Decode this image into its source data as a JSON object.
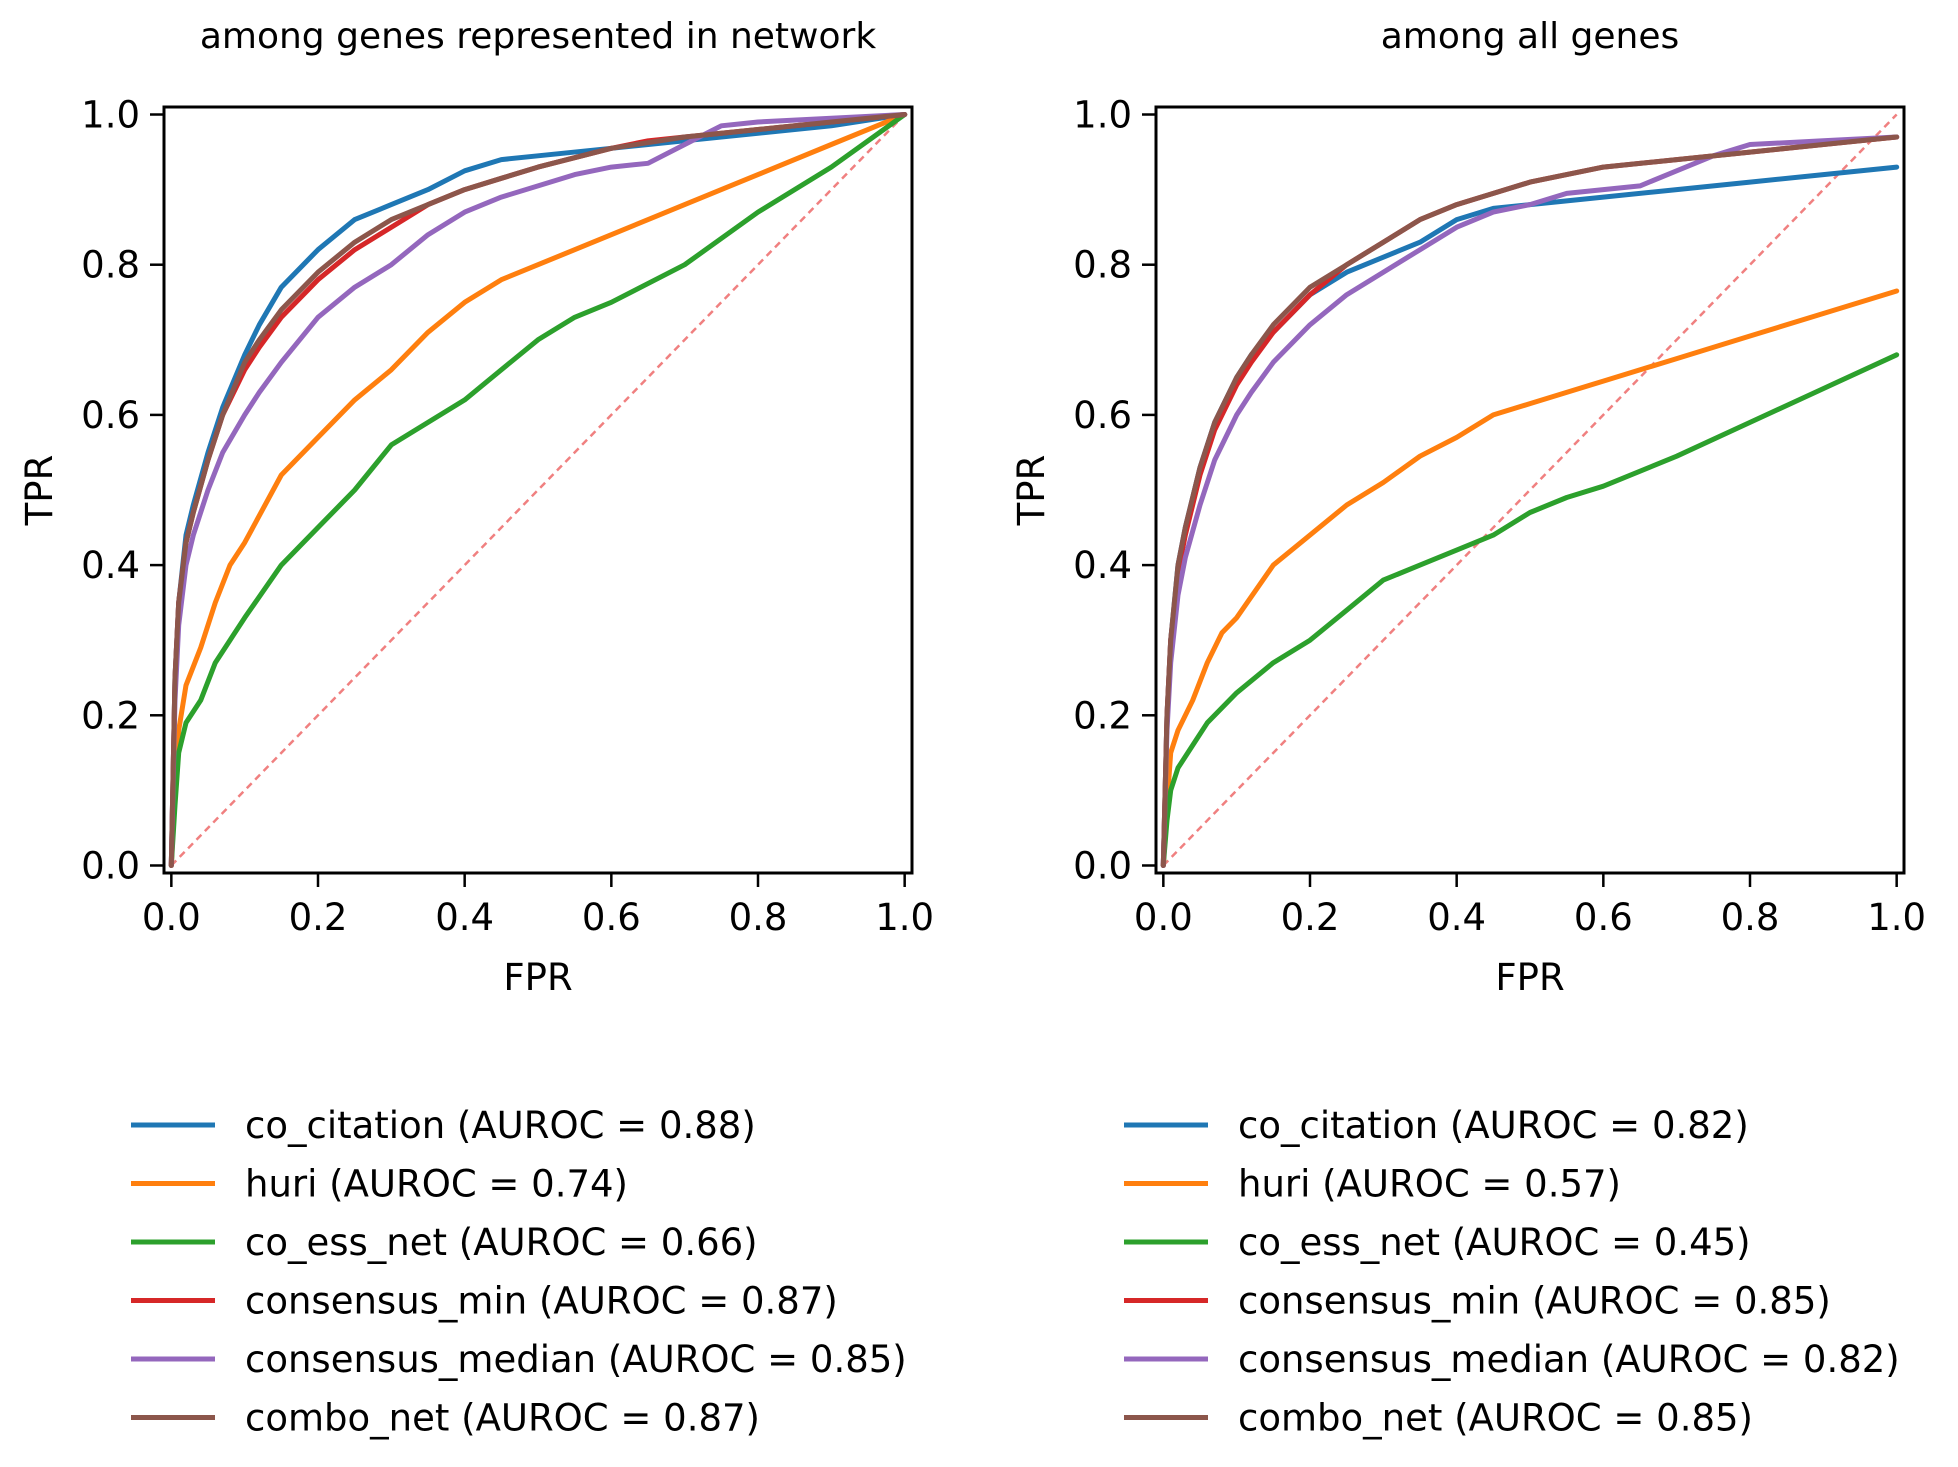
{
  "chart_data": [
    {
      "type": "line",
      "title": "among genes represented in network",
      "xlabel": "FPR",
      "ylabel": "TPR",
      "xlim": [
        -0.01,
        1.01
      ],
      "ylim": [
        -0.01,
        1.01
      ],
      "xticks": [
        "0.0",
        "0.2",
        "0.4",
        "0.6",
        "0.8",
        "1.0"
      ],
      "yticks": [
        "0.0",
        "0.2",
        "0.4",
        "0.6",
        "0.8",
        "1.0"
      ],
      "grid": false,
      "legend_position": "below",
      "reference_line": {
        "style": "dashed",
        "color": "#f08080",
        "x": [
          0,
          1
        ],
        "y": [
          0,
          1
        ]
      },
      "series": [
        {
          "name": "co_citation (AUROC = 0.88)",
          "color": "#1f77b4",
          "x": [
            0,
            0.005,
            0.01,
            0.02,
            0.03,
            0.05,
            0.07,
            0.1,
            0.12,
            0.15,
            0.2,
            0.25,
            0.3,
            0.35,
            0.4,
            0.45,
            0.5,
            0.6,
            0.7,
            0.8,
            0.9,
            1.0
          ],
          "y": [
            0,
            0.25,
            0.35,
            0.44,
            0.48,
            0.55,
            0.61,
            0.68,
            0.72,
            0.77,
            0.82,
            0.86,
            0.88,
            0.9,
            0.925,
            0.94,
            0.945,
            0.955,
            0.965,
            0.975,
            0.985,
            1.0
          ]
        },
        {
          "name": "huri (AUROC = 0.74)",
          "color": "#ff7f0e",
          "x": [
            0,
            0.005,
            0.01,
            0.02,
            0.04,
            0.06,
            0.08,
            0.1,
            0.15,
            0.2,
            0.25,
            0.3,
            0.35,
            0.4,
            0.45,
            0.5,
            0.6,
            0.7,
            0.8,
            0.9,
            1.0
          ],
          "y": [
            0,
            0.1,
            0.18,
            0.24,
            0.29,
            0.35,
            0.4,
            0.43,
            0.52,
            0.57,
            0.62,
            0.66,
            0.71,
            0.75,
            0.78,
            0.8,
            0.84,
            0.88,
            0.92,
            0.96,
            1.0
          ]
        },
        {
          "name": "co_ess_net (AUROC = 0.66)",
          "color": "#2ca02c",
          "x": [
            0,
            0.005,
            0.01,
            0.02,
            0.04,
            0.06,
            0.08,
            0.1,
            0.15,
            0.2,
            0.25,
            0.3,
            0.35,
            0.4,
            0.45,
            0.5,
            0.55,
            0.6,
            0.7,
            0.8,
            0.9,
            1.0
          ],
          "y": [
            0,
            0.08,
            0.15,
            0.19,
            0.22,
            0.27,
            0.3,
            0.33,
            0.4,
            0.45,
            0.5,
            0.56,
            0.59,
            0.62,
            0.66,
            0.7,
            0.73,
            0.75,
            0.8,
            0.87,
            0.93,
            1.0
          ]
        },
        {
          "name": "consensus_min (AUROC = 0.87)",
          "color": "#d62728",
          "x": [
            0,
            0.005,
            0.01,
            0.02,
            0.03,
            0.05,
            0.07,
            0.1,
            0.12,
            0.15,
            0.2,
            0.25,
            0.3,
            0.35,
            0.4,
            0.45,
            0.5,
            0.6,
            0.65,
            0.7,
            0.8,
            0.9,
            1.0
          ],
          "y": [
            0,
            0.25,
            0.35,
            0.43,
            0.47,
            0.54,
            0.6,
            0.66,
            0.69,
            0.73,
            0.78,
            0.82,
            0.85,
            0.88,
            0.9,
            0.915,
            0.93,
            0.955,
            0.965,
            0.97,
            0.98,
            0.99,
            1.0
          ]
        },
        {
          "name": "consensus_median (AUROC = 0.85)",
          "color": "#9467bd",
          "x": [
            0,
            0.005,
            0.01,
            0.02,
            0.03,
            0.05,
            0.07,
            0.1,
            0.12,
            0.15,
            0.2,
            0.25,
            0.3,
            0.35,
            0.4,
            0.45,
            0.5,
            0.55,
            0.6,
            0.65,
            0.7,
            0.75,
            0.8,
            0.9,
            1.0
          ],
          "y": [
            0,
            0.22,
            0.32,
            0.4,
            0.44,
            0.5,
            0.55,
            0.6,
            0.63,
            0.67,
            0.73,
            0.77,
            0.8,
            0.84,
            0.87,
            0.89,
            0.905,
            0.92,
            0.93,
            0.935,
            0.96,
            0.985,
            0.99,
            0.995,
            1.0
          ]
        },
        {
          "name": "combo_net (AUROC = 0.87)",
          "color": "#8c564b",
          "x": [
            0,
            0.005,
            0.01,
            0.02,
            0.03,
            0.05,
            0.07,
            0.1,
            0.12,
            0.15,
            0.2,
            0.25,
            0.3,
            0.35,
            0.4,
            0.45,
            0.5,
            0.6,
            0.7,
            0.8,
            0.9,
            1.0
          ],
          "y": [
            0,
            0.25,
            0.35,
            0.43,
            0.47,
            0.54,
            0.6,
            0.67,
            0.7,
            0.74,
            0.79,
            0.83,
            0.86,
            0.88,
            0.9,
            0.915,
            0.93,
            0.955,
            0.97,
            0.98,
            0.99,
            1.0
          ]
        }
      ]
    },
    {
      "type": "line",
      "title": "among all genes",
      "xlabel": "FPR",
      "ylabel": "TPR",
      "xlim": [
        -0.01,
        1.01
      ],
      "ylim": [
        -0.01,
        1.01
      ],
      "xticks": [
        "0.0",
        "0.2",
        "0.4",
        "0.6",
        "0.8",
        "1.0"
      ],
      "yticks": [
        "0.0",
        "0.2",
        "0.4",
        "0.6",
        "0.8",
        "1.0"
      ],
      "grid": false,
      "legend_position": "below",
      "reference_line": {
        "style": "dashed",
        "color": "#f08080",
        "x": [
          0,
          1
        ],
        "y": [
          0,
          1
        ]
      },
      "series": [
        {
          "name": "co_citation (AUROC = 0.82)",
          "color": "#1f77b4",
          "x": [
            0,
            0.005,
            0.01,
            0.02,
            0.03,
            0.05,
            0.07,
            0.1,
            0.12,
            0.15,
            0.2,
            0.25,
            0.3,
            0.35,
            0.4,
            0.45,
            0.5,
            0.6,
            0.7,
            0.8,
            0.9,
            1.0
          ],
          "y": [
            0,
            0.2,
            0.3,
            0.4,
            0.45,
            0.53,
            0.59,
            0.65,
            0.68,
            0.71,
            0.76,
            0.79,
            0.81,
            0.83,
            0.86,
            0.875,
            0.88,
            0.89,
            0.9,
            0.91,
            0.92,
            0.93
          ]
        },
        {
          "name": "huri (AUROC = 0.57)",
          "color": "#ff7f0e",
          "x": [
            0,
            0.005,
            0.01,
            0.02,
            0.04,
            0.06,
            0.08,
            0.1,
            0.15,
            0.2,
            0.25,
            0.3,
            0.35,
            0.4,
            0.45,
            0.5,
            0.6,
            0.7,
            0.8,
            0.9,
            1.0
          ],
          "y": [
            0,
            0.08,
            0.15,
            0.18,
            0.22,
            0.27,
            0.31,
            0.33,
            0.4,
            0.44,
            0.48,
            0.51,
            0.545,
            0.57,
            0.6,
            0.615,
            0.645,
            0.675,
            0.705,
            0.735,
            0.765
          ]
        },
        {
          "name": "co_ess_net (AUROC = 0.45)",
          "color": "#2ca02c",
          "x": [
            0,
            0.005,
            0.01,
            0.02,
            0.04,
            0.06,
            0.08,
            0.1,
            0.15,
            0.2,
            0.25,
            0.3,
            0.35,
            0.4,
            0.45,
            0.5,
            0.55,
            0.6,
            0.7,
            0.8,
            0.9,
            1.0
          ],
          "y": [
            0,
            0.06,
            0.1,
            0.13,
            0.16,
            0.19,
            0.21,
            0.23,
            0.27,
            0.3,
            0.34,
            0.38,
            0.4,
            0.42,
            0.44,
            0.47,
            0.49,
            0.505,
            0.545,
            0.59,
            0.635,
            0.68
          ]
        },
        {
          "name": "consensus_min (AUROC = 0.85)",
          "color": "#d62728",
          "x": [
            0,
            0.005,
            0.01,
            0.02,
            0.03,
            0.05,
            0.07,
            0.1,
            0.12,
            0.15,
            0.2,
            0.25,
            0.3,
            0.35,
            0.4,
            0.45,
            0.5,
            0.6,
            0.7,
            0.8,
            0.9,
            1.0
          ],
          "y": [
            0,
            0.2,
            0.3,
            0.39,
            0.44,
            0.52,
            0.58,
            0.64,
            0.67,
            0.71,
            0.76,
            0.8,
            0.83,
            0.86,
            0.88,
            0.895,
            0.91,
            0.93,
            0.94,
            0.95,
            0.96,
            0.97
          ]
        },
        {
          "name": "consensus_median (AUROC = 0.82)",
          "color": "#9467bd",
          "x": [
            0,
            0.005,
            0.01,
            0.02,
            0.03,
            0.05,
            0.07,
            0.1,
            0.12,
            0.15,
            0.2,
            0.25,
            0.3,
            0.35,
            0.4,
            0.45,
            0.5,
            0.55,
            0.6,
            0.65,
            0.7,
            0.75,
            0.8,
            0.9,
            1.0
          ],
          "y": [
            0,
            0.18,
            0.27,
            0.36,
            0.41,
            0.48,
            0.54,
            0.6,
            0.63,
            0.67,
            0.72,
            0.76,
            0.79,
            0.82,
            0.85,
            0.87,
            0.88,
            0.895,
            0.9,
            0.905,
            0.925,
            0.945,
            0.96,
            0.965,
            0.97
          ]
        },
        {
          "name": "combo_net (AUROC = 0.85)",
          "color": "#8c564b",
          "x": [
            0,
            0.005,
            0.01,
            0.02,
            0.03,
            0.05,
            0.07,
            0.1,
            0.12,
            0.15,
            0.2,
            0.25,
            0.3,
            0.35,
            0.4,
            0.45,
            0.5,
            0.6,
            0.7,
            0.8,
            0.9,
            1.0
          ],
          "y": [
            0,
            0.2,
            0.3,
            0.4,
            0.45,
            0.53,
            0.59,
            0.65,
            0.68,
            0.72,
            0.77,
            0.8,
            0.83,
            0.86,
            0.88,
            0.895,
            0.91,
            0.93,
            0.94,
            0.95,
            0.96,
            0.97
          ]
        }
      ]
    }
  ]
}
